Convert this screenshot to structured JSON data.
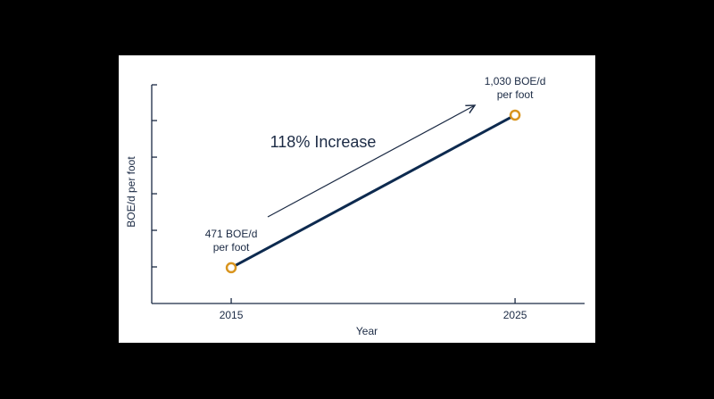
{
  "chart_data": {
    "type": "line",
    "x_label": "Year",
    "y_label": "BOE/d per foot",
    "annotation": "118% Increase",
    "x": [
      2015,
      2025
    ],
    "series": [
      {
        "color": "#0d2a4f",
        "marker_color": "#d9951f",
        "values": [
          471,
          1030
        ],
        "value_labels": [
          "471 BOE/d per foot",
          "1,030 BOE/d per foot"
        ]
      }
    ],
    "xlim": [
      2012.2,
      2027.45
    ],
    "xticks": [
      2015,
      2025
    ],
    "ylim": [
      340,
      1141
    ],
    "yticks": [
      474,
      608,
      742,
      876,
      1010
    ],
    "ytick_labels": false
  }
}
